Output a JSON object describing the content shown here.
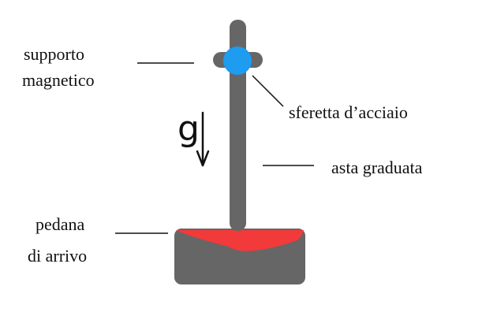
{
  "labels": {
    "magnetic_support_line1": "supporto",
    "magnetic_support_line2": "magnetico",
    "steel_ball": "sferetta d’acciaio",
    "graduated_rod": "asta graduata",
    "landing_pad_line1": "pedana",
    "landing_pad_line2": "di arrivo",
    "gravity_symbol": "g"
  },
  "colors": {
    "apparatus": "#666666",
    "ball": "#1e9cf0",
    "pad_surface": "#f23a3a",
    "leader_lines": "#111111",
    "text": "#111111"
  },
  "icons": {
    "gravity_arrow": "down-arrow-icon"
  }
}
